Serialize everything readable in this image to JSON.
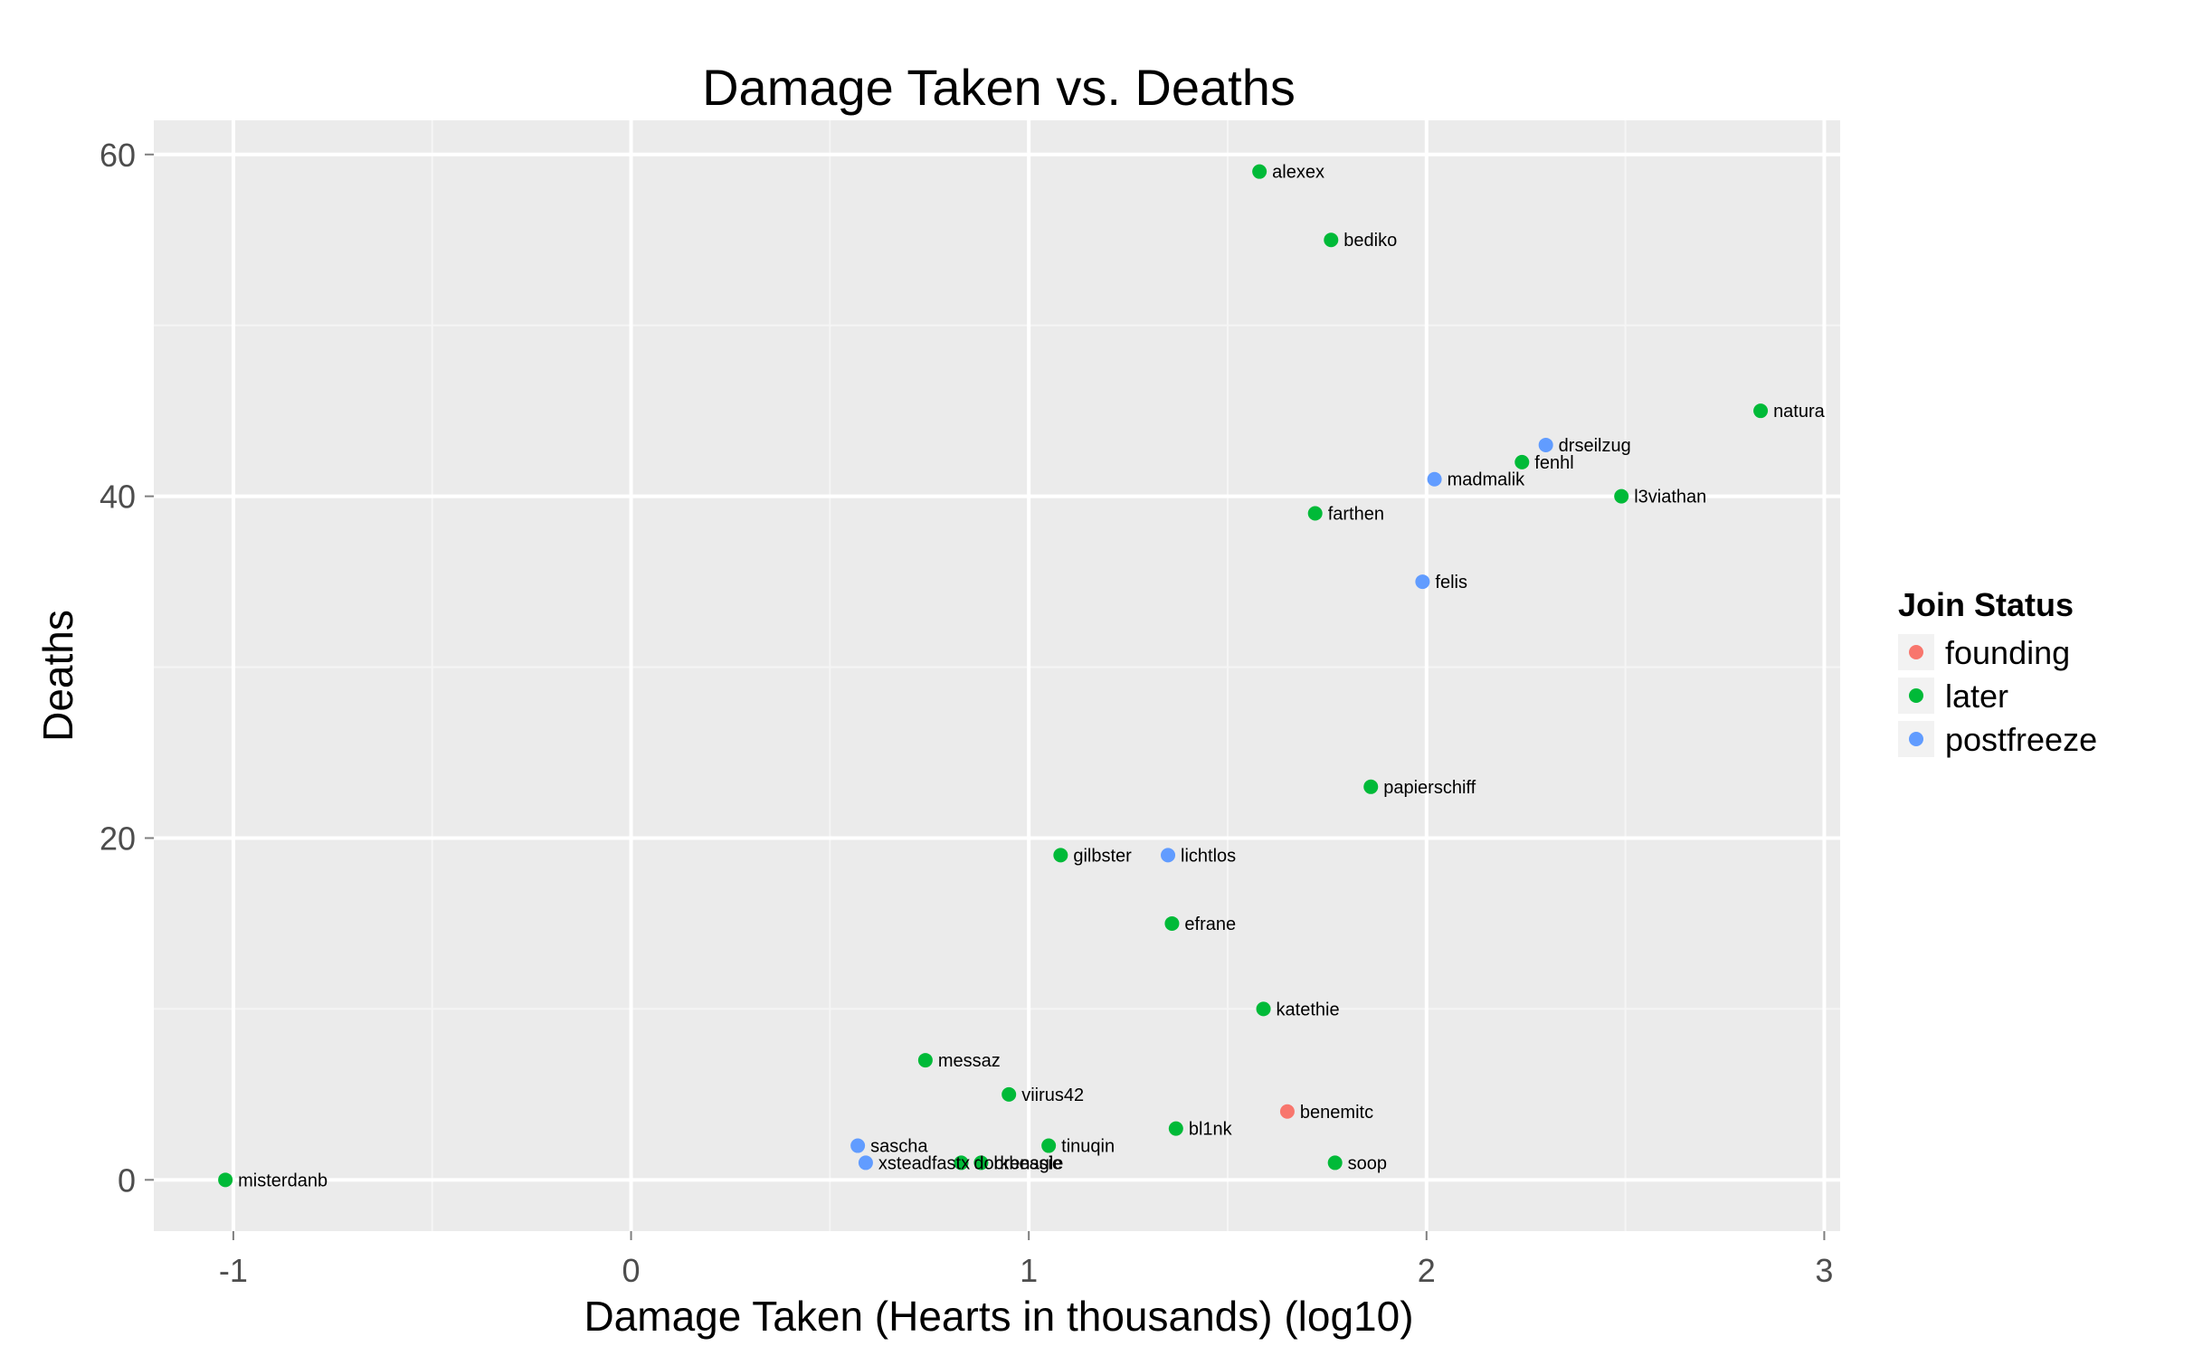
{
  "chart_data": {
    "type": "scatter",
    "title": "Damage Taken vs. Deaths",
    "xlabel": "Damage Taken (Hearts in thousands) (log10)",
    "ylabel": "Deaths",
    "xlim": [
      -1.2,
      3.04
    ],
    "ylim": [
      -3,
      62
    ],
    "x_ticks": [
      -1,
      0,
      1,
      2,
      3
    ],
    "x_tick_labels": [
      "-1",
      "0",
      "1",
      "2",
      "3"
    ],
    "y_ticks": [
      0,
      20,
      40,
      60
    ],
    "y_tick_labels": [
      "0",
      "20",
      "40",
      "60"
    ],
    "grid": true,
    "legend": {
      "title": "Join Status",
      "position": "right",
      "entries": [
        {
          "label": "founding",
          "color": "#F8766D"
        },
        {
          "label": "later",
          "color": "#00BA38"
        },
        {
          "label": "postfreeze",
          "color": "#619CFF"
        }
      ]
    },
    "points": [
      {
        "label": "alexex",
        "x": 1.58,
        "y": 59,
        "group": "later"
      },
      {
        "label": "bediko",
        "x": 1.76,
        "y": 55,
        "group": "later"
      },
      {
        "label": "natura",
        "x": 2.84,
        "y": 45,
        "group": "later"
      },
      {
        "label": "drseilzug",
        "x": 2.3,
        "y": 43,
        "group": "postfreeze"
      },
      {
        "label": "fenhl",
        "x": 2.24,
        "y": 42,
        "group": "later"
      },
      {
        "label": "madmalik",
        "x": 2.02,
        "y": 41,
        "group": "postfreeze"
      },
      {
        "label": "l3viathan",
        "x": 2.49,
        "y": 40,
        "group": "later"
      },
      {
        "label": "farthen",
        "x": 1.72,
        "y": 39,
        "group": "later"
      },
      {
        "label": "felis",
        "x": 1.99,
        "y": 35,
        "group": "postfreeze"
      },
      {
        "label": "papierschiff",
        "x": 1.86,
        "y": 23,
        "group": "later"
      },
      {
        "label": "gilbster",
        "x": 1.08,
        "y": 19,
        "group": "later"
      },
      {
        "label": "lichtlos",
        "x": 1.35,
        "y": 19,
        "group": "postfreeze"
      },
      {
        "label": "efrane",
        "x": 1.36,
        "y": 15,
        "group": "later"
      },
      {
        "label": "katethie",
        "x": 1.59,
        "y": 10,
        "group": "later"
      },
      {
        "label": "messaz",
        "x": 0.74,
        "y": 7,
        "group": "later"
      },
      {
        "label": "viirus42",
        "x": 0.95,
        "y": 5,
        "group": "later"
      },
      {
        "label": "benemitc",
        "x": 1.65,
        "y": 4,
        "group": "founding"
      },
      {
        "label": "bl1nk",
        "x": 1.37,
        "y": 3,
        "group": "later"
      },
      {
        "label": "sascha",
        "x": 0.57,
        "y": 2,
        "group": "postfreeze"
      },
      {
        "label": "tinuqin",
        "x": 1.05,
        "y": 2,
        "group": "later"
      },
      {
        "label": "xsteadfastx",
        "x": 0.59,
        "y": 1,
        "group": "postfreeze"
      },
      {
        "label": "dorkbeagle",
        "x": 0.83,
        "y": 1,
        "group": "later"
      },
      {
        "label": "brenssie",
        "x": 0.88,
        "y": 1,
        "group": "later"
      },
      {
        "label": "soop",
        "x": 1.77,
        "y": 1,
        "group": "later"
      },
      {
        "label": "misterdanb",
        "x": -1.02,
        "y": 0,
        "group": "later"
      }
    ]
  }
}
